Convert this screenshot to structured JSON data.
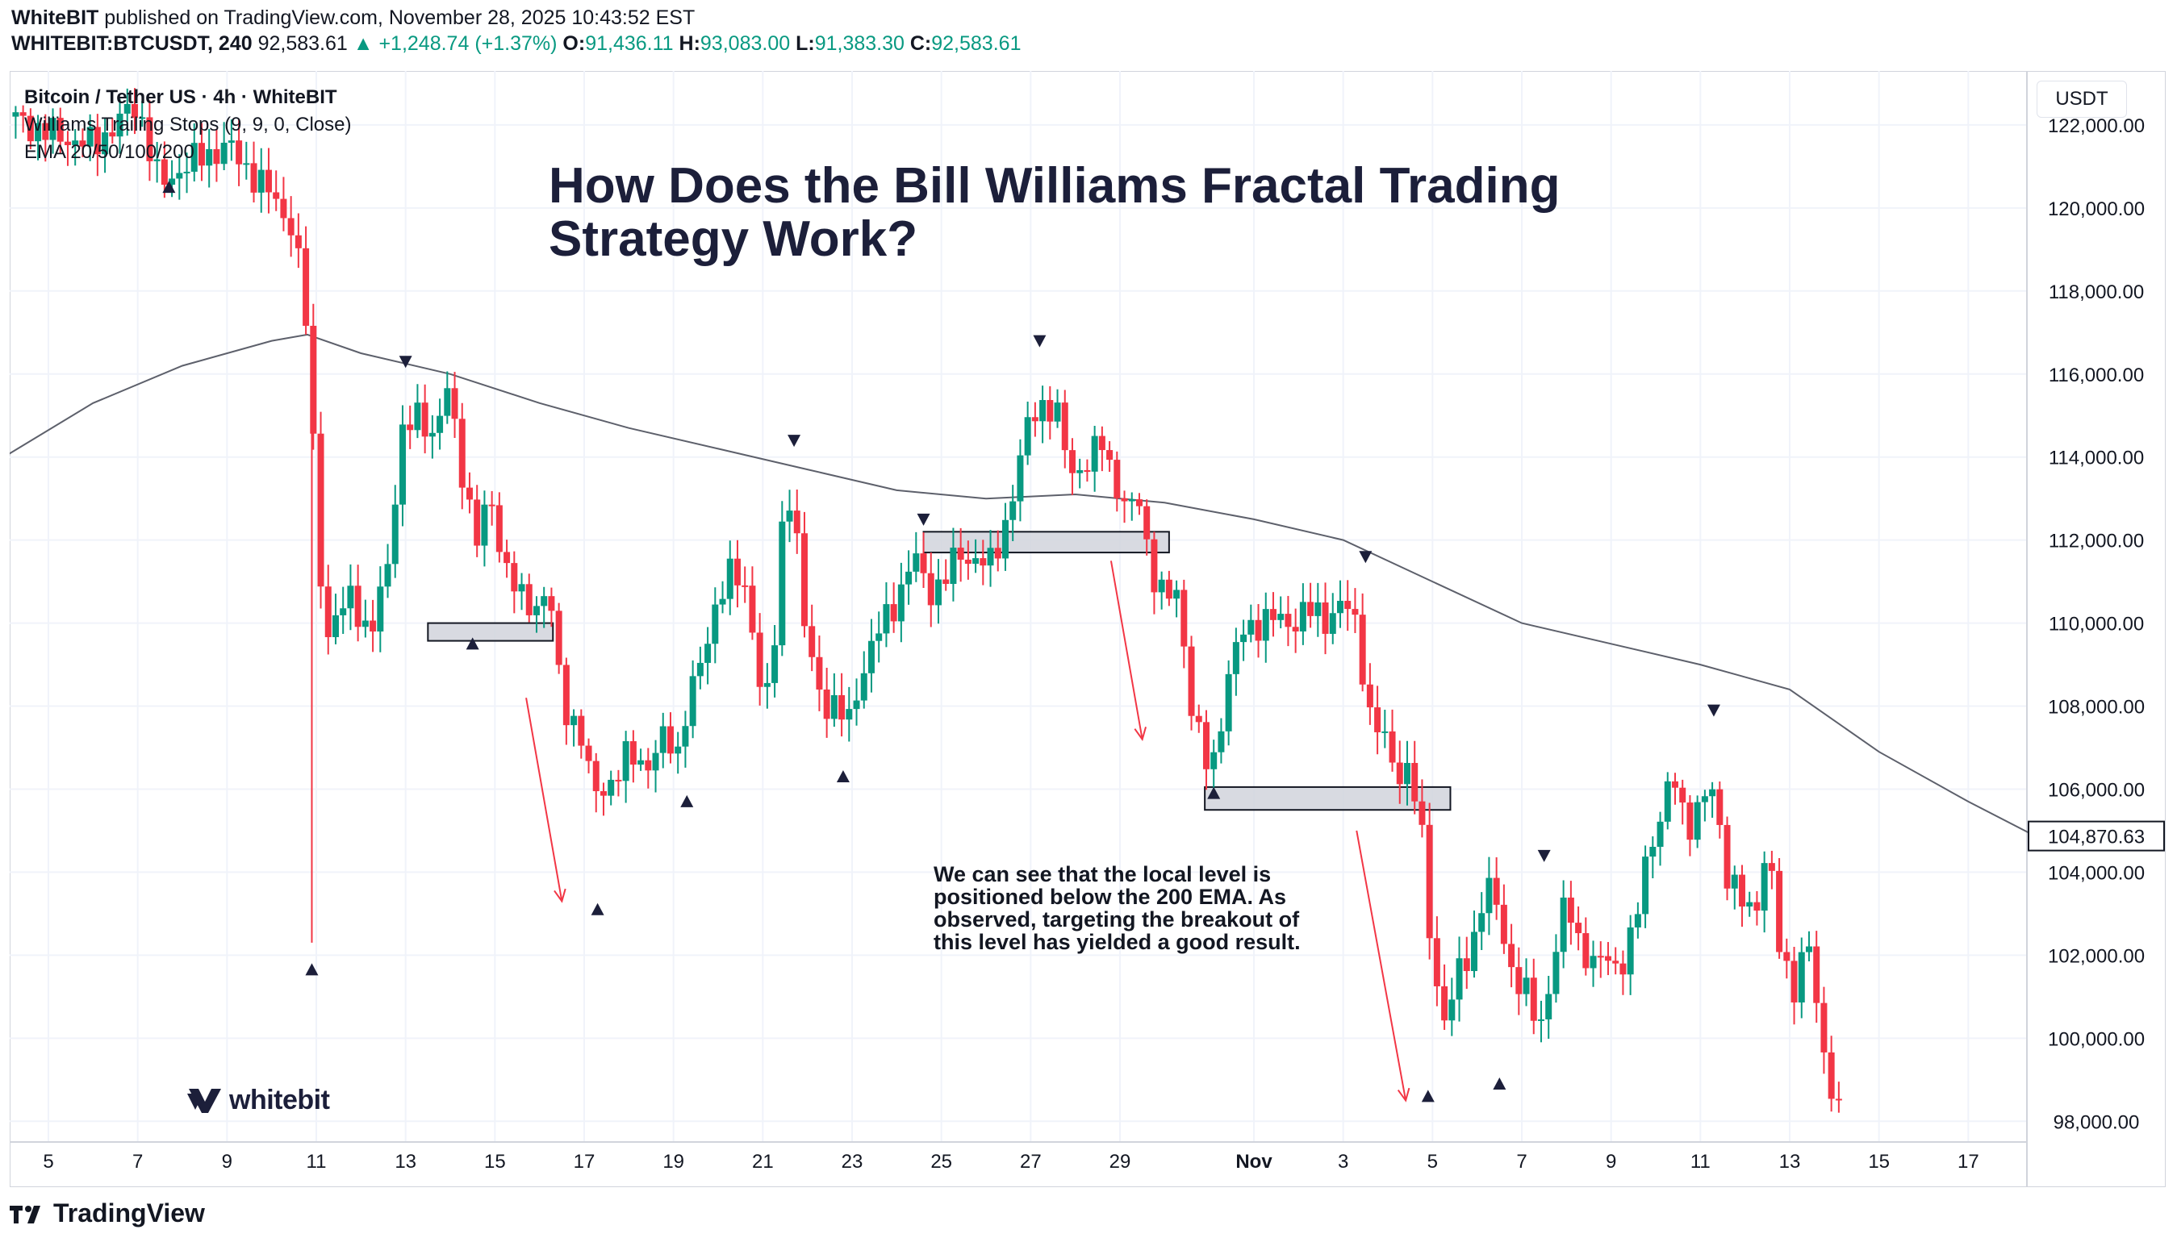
{
  "header": {
    "publisher": "WhiteBIT",
    "published_text": "published on TradingView.com, November 28, 2025 10:43:52 EST",
    "symbol": "WHITEBIT:BTCUSDT, 240",
    "last_price": "92,583.61",
    "change": "▲ +1,248.74 (+1.37%)",
    "o_label": "O:",
    "o_value": "91,436.11",
    "h_label": "H:",
    "h_value": "93,083.00",
    "l_label": "L:",
    "l_value": "91,383.30",
    "c_label": "C:",
    "c_value": "92,583.61"
  },
  "legend": {
    "line1": "Bitcoin / Tether US · 4h · WhiteBIT",
    "line2": "Williams Trailing Stops (9, 9, 0, Close)",
    "line3": "EMA 20/50/100/200"
  },
  "title": "How Does the Bill Williams Fractal Trading Strategy Work?",
  "note": "We can see that the local level is positioned below the 200 EMA. As observed, targeting the breakout of this level has yielded a good result.",
  "brand": "whitebit",
  "footer_brand": "TradingView",
  "currency": "USDT",
  "colors": {
    "up": "#089981",
    "down": "#f23645",
    "ema": "#5d606b",
    "arrow": "#f23645"
  },
  "chart_data": {
    "type": "candlestick",
    "title": "How Does the Bill Williams Fractal Trading Strategy Work?",
    "symbol": "BTCUSDT",
    "timeframe": "4h",
    "y_unit": "USDT",
    "ylim": [
      97500,
      123300
    ],
    "x_ticks": [
      {
        "day": 5,
        "label": "5"
      },
      {
        "day": 7,
        "label": "7"
      },
      {
        "day": 9,
        "label": "9"
      },
      {
        "day": 11,
        "label": "11"
      },
      {
        "day": 13,
        "label": "13"
      },
      {
        "day": 15,
        "label": "15"
      },
      {
        "day": 17,
        "label": "17"
      },
      {
        "day": 19,
        "label": "19"
      },
      {
        "day": 21,
        "label": "21"
      },
      {
        "day": 23,
        "label": "23"
      },
      {
        "day": 25,
        "label": "25"
      },
      {
        "day": 27,
        "label": "27"
      },
      {
        "day": 29,
        "label": "29"
      },
      {
        "day": 32,
        "label": "Nov"
      },
      {
        "day": 34,
        "label": "3"
      },
      {
        "day": 36,
        "label": "5"
      },
      {
        "day": 38,
        "label": "7"
      },
      {
        "day": 40,
        "label": "9"
      },
      {
        "day": 42,
        "label": "11"
      },
      {
        "day": 44,
        "label": "13"
      },
      {
        "day": 46,
        "label": "15"
      },
      {
        "day": 48,
        "label": "17"
      }
    ],
    "y_ticks": [
      {
        "value": 98000,
        "label": "98,000.00"
      },
      {
        "value": 100000,
        "label": "100,000.00"
      },
      {
        "value": 102000,
        "label": "102,000.00"
      },
      {
        "value": 104000,
        "label": "104,000.00"
      },
      {
        "value": 106000,
        "label": "106,000.00"
      },
      {
        "value": 108000,
        "label": "108,000.00"
      },
      {
        "value": 110000,
        "label": "110,000.00"
      },
      {
        "value": 112000,
        "label": "112,000.00"
      },
      {
        "value": 114000,
        "label": "114,000.00"
      },
      {
        "value": 116000,
        "label": "116,000.00"
      },
      {
        "value": 118000,
        "label": "118,000.00"
      },
      {
        "value": 120000,
        "label": "120,000.00"
      },
      {
        "value": 122000,
        "label": "122,000.00"
      }
    ],
    "price_tag": {
      "value": 104870.63,
      "label": "104,870.63"
    },
    "path": [
      [
        4.1,
        122200
      ],
      [
        5,
        121800
      ],
      [
        6,
        121500
      ],
      [
        7,
        122500
      ],
      [
        7.5,
        120500
      ],
      [
        8,
        121000
      ],
      [
        9,
        121500
      ],
      [
        10,
        120300
      ],
      [
        10.5,
        119500
      ],
      [
        10.8,
        117000
      ],
      [
        11,
        113000
      ],
      [
        11.2,
        109500
      ],
      [
        11.8,
        110800
      ],
      [
        12.2,
        109500
      ],
      [
        12.6,
        111500
      ],
      [
        12.9,
        114500
      ],
      [
        13.3,
        115000
      ],
      [
        13.7,
        114500
      ],
      [
        13.9,
        115800
      ],
      [
        14.3,
        113500
      ],
      [
        14.6,
        112000
      ],
      [
        14.9,
        113000
      ],
      [
        15.2,
        111500
      ],
      [
        15.6,
        110500
      ],
      [
        15.9,
        110400
      ],
      [
        16.2,
        110900
      ],
      [
        16.5,
        108000
      ],
      [
        16.9,
        107500
      ],
      [
        17.2,
        105800
      ],
      [
        17.6,
        106200
      ],
      [
        18,
        106800
      ],
      [
        18.4,
        106600
      ],
      [
        18.8,
        107200
      ],
      [
        19.1,
        106900
      ],
      [
        19.3,
        108100
      ],
      [
        19.7,
        109200
      ],
      [
        20,
        110800
      ],
      [
        20.3,
        111200
      ],
      [
        20.7,
        110600
      ],
      [
        21,
        108000
      ],
      [
        21.2,
        108500
      ],
      [
        21.5,
        113300
      ],
      [
        21.7,
        113000
      ],
      [
        21.9,
        110000
      ],
      [
        22.3,
        108200
      ],
      [
        22.7,
        107900
      ],
      [
        22.9,
        107500
      ],
      [
        23.2,
        108800
      ],
      [
        23.6,
        109800
      ],
      [
        24,
        110600
      ],
      [
        24.4,
        111600
      ],
      [
        24.7,
        110800
      ],
      [
        25,
        110900
      ],
      [
        25.4,
        111700
      ],
      [
        25.8,
        111500
      ],
      [
        26.1,
        111400
      ],
      [
        26.4,
        112300
      ],
      [
        26.7,
        113500
      ],
      [
        27,
        115100
      ],
      [
        27.3,
        115300
      ],
      [
        27.6,
        114900
      ],
      [
        27.9,
        113700
      ],
      [
        28.3,
        113800
      ],
      [
        28.6,
        114400
      ],
      [
        28.9,
        113400
      ],
      [
        29.2,
        112500
      ],
      [
        29.4,
        113200
      ],
      [
        29.7,
        111300
      ],
      [
        30,
        110500
      ],
      [
        30.3,
        110800
      ],
      [
        30.6,
        108000
      ],
      [
        30.9,
        106600
      ],
      [
        31.1,
        106700
      ],
      [
        31.4,
        108600
      ],
      [
        31.7,
        109700
      ],
      [
        32,
        110000
      ],
      [
        32.4,
        110100
      ],
      [
        32.8,
        110000
      ],
      [
        33.2,
        110300
      ],
      [
        33.6,
        110100
      ],
      [
        34,
        110500
      ],
      [
        34.3,
        109900
      ],
      [
        34.6,
        107800
      ],
      [
        34.9,
        107200
      ],
      [
        35.2,
        106400
      ],
      [
        35.5,
        106500
      ],
      [
        35.8,
        104500
      ],
      [
        36,
        101800
      ],
      [
        36.3,
        100300
      ],
      [
        36.6,
        101600
      ],
      [
        36.9,
        102300
      ],
      [
        37.2,
        103700
      ],
      [
        37.5,
        103000
      ],
      [
        37.8,
        101500
      ],
      [
        38.1,
        101000
      ],
      [
        38.4,
        100300
      ],
      [
        38.7,
        101700
      ],
      [
        39,
        103400
      ],
      [
        39.3,
        102300
      ],
      [
        39.6,
        101700
      ],
      [
        39.9,
        102000
      ],
      [
        40.2,
        101700
      ],
      [
        40.5,
        102400
      ],
      [
        40.8,
        104500
      ],
      [
        41.1,
        105300
      ],
      [
        41.4,
        106300
      ],
      [
        41.7,
        105100
      ],
      [
        42,
        105600
      ],
      [
        42.3,
        106000
      ],
      [
        42.6,
        104000
      ],
      [
        42.9,
        103300
      ],
      [
        43.2,
        102900
      ],
      [
        43.5,
        104800
      ],
      [
        43.8,
        101800
      ],
      [
        44.1,
        101300
      ],
      [
        44.4,
        102500
      ],
      [
        44.7,
        99800
      ],
      [
        45,
        98700
      ],
      [
        45.2,
        97900
      ]
    ],
    "ema200": [
      [
        4,
        114000
      ],
      [
        6,
        115300
      ],
      [
        8,
        116200
      ],
      [
        10,
        116800
      ],
      [
        10.8,
        116950
      ],
      [
        12,
        116500
      ],
      [
        14,
        116000
      ],
      [
        16,
        115300
      ],
      [
        18,
        114700
      ],
      [
        20,
        114200
      ],
      [
        22,
        113700
      ],
      [
        24,
        113200
      ],
      [
        26,
        113000
      ],
      [
        28,
        113100
      ],
      [
        30,
        112900
      ],
      [
        32,
        112500
      ],
      [
        34,
        112000
      ],
      [
        36,
        111000
      ],
      [
        38,
        110000
      ],
      [
        40,
        109500
      ],
      [
        42,
        109000
      ],
      [
        44,
        108400
      ],
      [
        46,
        106900
      ],
      [
        48,
        105700
      ],
      [
        49.5,
        104870.63
      ]
    ],
    "fractals": [
      {
        "day": 7.7,
        "price": 120500,
        "dir": "up"
      },
      {
        "day": 13,
        "price": 116300,
        "dir": "down"
      },
      {
        "day": 10.9,
        "price": 101650,
        "dir": "up"
      },
      {
        "day": 14.5,
        "price": 109500,
        "dir": "up"
      },
      {
        "day": 17.3,
        "price": 103100,
        "dir": "up"
      },
      {
        "day": 19.3,
        "price": 105700,
        "dir": "up"
      },
      {
        "day": 21.7,
        "price": 114400,
        "dir": "down"
      },
      {
        "day": 22.8,
        "price": 106300,
        "dir": "up"
      },
      {
        "day": 24.6,
        "price": 112500,
        "dir": "down"
      },
      {
        "day": 27.2,
        "price": 116800,
        "dir": "down"
      },
      {
        "day": 31.1,
        "price": 105900,
        "dir": "up"
      },
      {
        "day": 34.5,
        "price": 111600,
        "dir": "down"
      },
      {
        "day": 35.9,
        "price": 98600,
        "dir": "up"
      },
      {
        "day": 37.5,
        "price": 98900,
        "dir": "up"
      },
      {
        "day": 38.5,
        "price": 104400,
        "dir": "down"
      },
      {
        "day": 42.3,
        "price": 107900,
        "dir": "down"
      }
    ],
    "level_boxes": [
      {
        "day_from": 13.5,
        "day_to": 16.3,
        "price_from": 109600,
        "price_to": 110000
      },
      {
        "day_from": 24.6,
        "day_to": 30.1,
        "price_from": 111700,
        "price_to": 112200
      },
      {
        "day_from": 30.9,
        "day_to": 36.4,
        "price_from": 105500,
        "price_to": 106050
      }
    ],
    "arrows": [
      {
        "from_day": 15.7,
        "from_price": 108200,
        "to_day": 16.5,
        "to_price": 103300
      },
      {
        "from_day": 28.8,
        "from_price": 111500,
        "to_day": 29.5,
        "to_price": 107200
      },
      {
        "from_day": 34.3,
        "from_price": 105000,
        "to_day": 35.4,
        "to_price": 98500
      }
    ]
  }
}
